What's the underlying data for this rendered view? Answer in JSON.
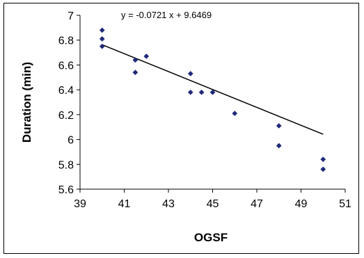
{
  "chart_data": {
    "type": "scatter",
    "title": "",
    "xlabel": "OGSF",
    "ylabel": "Duration (min)",
    "xlim": [
      39,
      51
    ],
    "ylim": [
      5.6,
      7
    ],
    "x_ticks": [
      "39",
      "41",
      "43",
      "45",
      "47",
      "49",
      "51"
    ],
    "y_ticks": [
      "5.6",
      "5.8",
      "6",
      "6.2",
      "6.4",
      "6.6",
      "6.8",
      "7"
    ],
    "grid": false,
    "legend": "none",
    "marker_color": "#1f2a7a",
    "trendline": {
      "equation": "y = -0.0721 x + 9.6469",
      "slope": -0.0721,
      "intercept": 9.6469,
      "x_range": [
        40,
        50
      ]
    },
    "points": [
      {
        "x": 40,
        "y": 6.88
      },
      {
        "x": 40,
        "y": 6.81
      },
      {
        "x": 40,
        "y": 6.75
      },
      {
        "x": 41.5,
        "y": 6.64
      },
      {
        "x": 41.5,
        "y": 6.54
      },
      {
        "x": 42,
        "y": 6.67
      },
      {
        "x": 44,
        "y": 6.53
      },
      {
        "x": 44,
        "y": 6.38
      },
      {
        "x": 44.5,
        "y": 6.38
      },
      {
        "x": 45,
        "y": 6.38
      },
      {
        "x": 46,
        "y": 6.21
      },
      {
        "x": 48,
        "y": 6.11
      },
      {
        "x": 48,
        "y": 5.95
      },
      {
        "x": 50,
        "y": 5.84
      },
      {
        "x": 50,
        "y": 5.76
      }
    ]
  }
}
